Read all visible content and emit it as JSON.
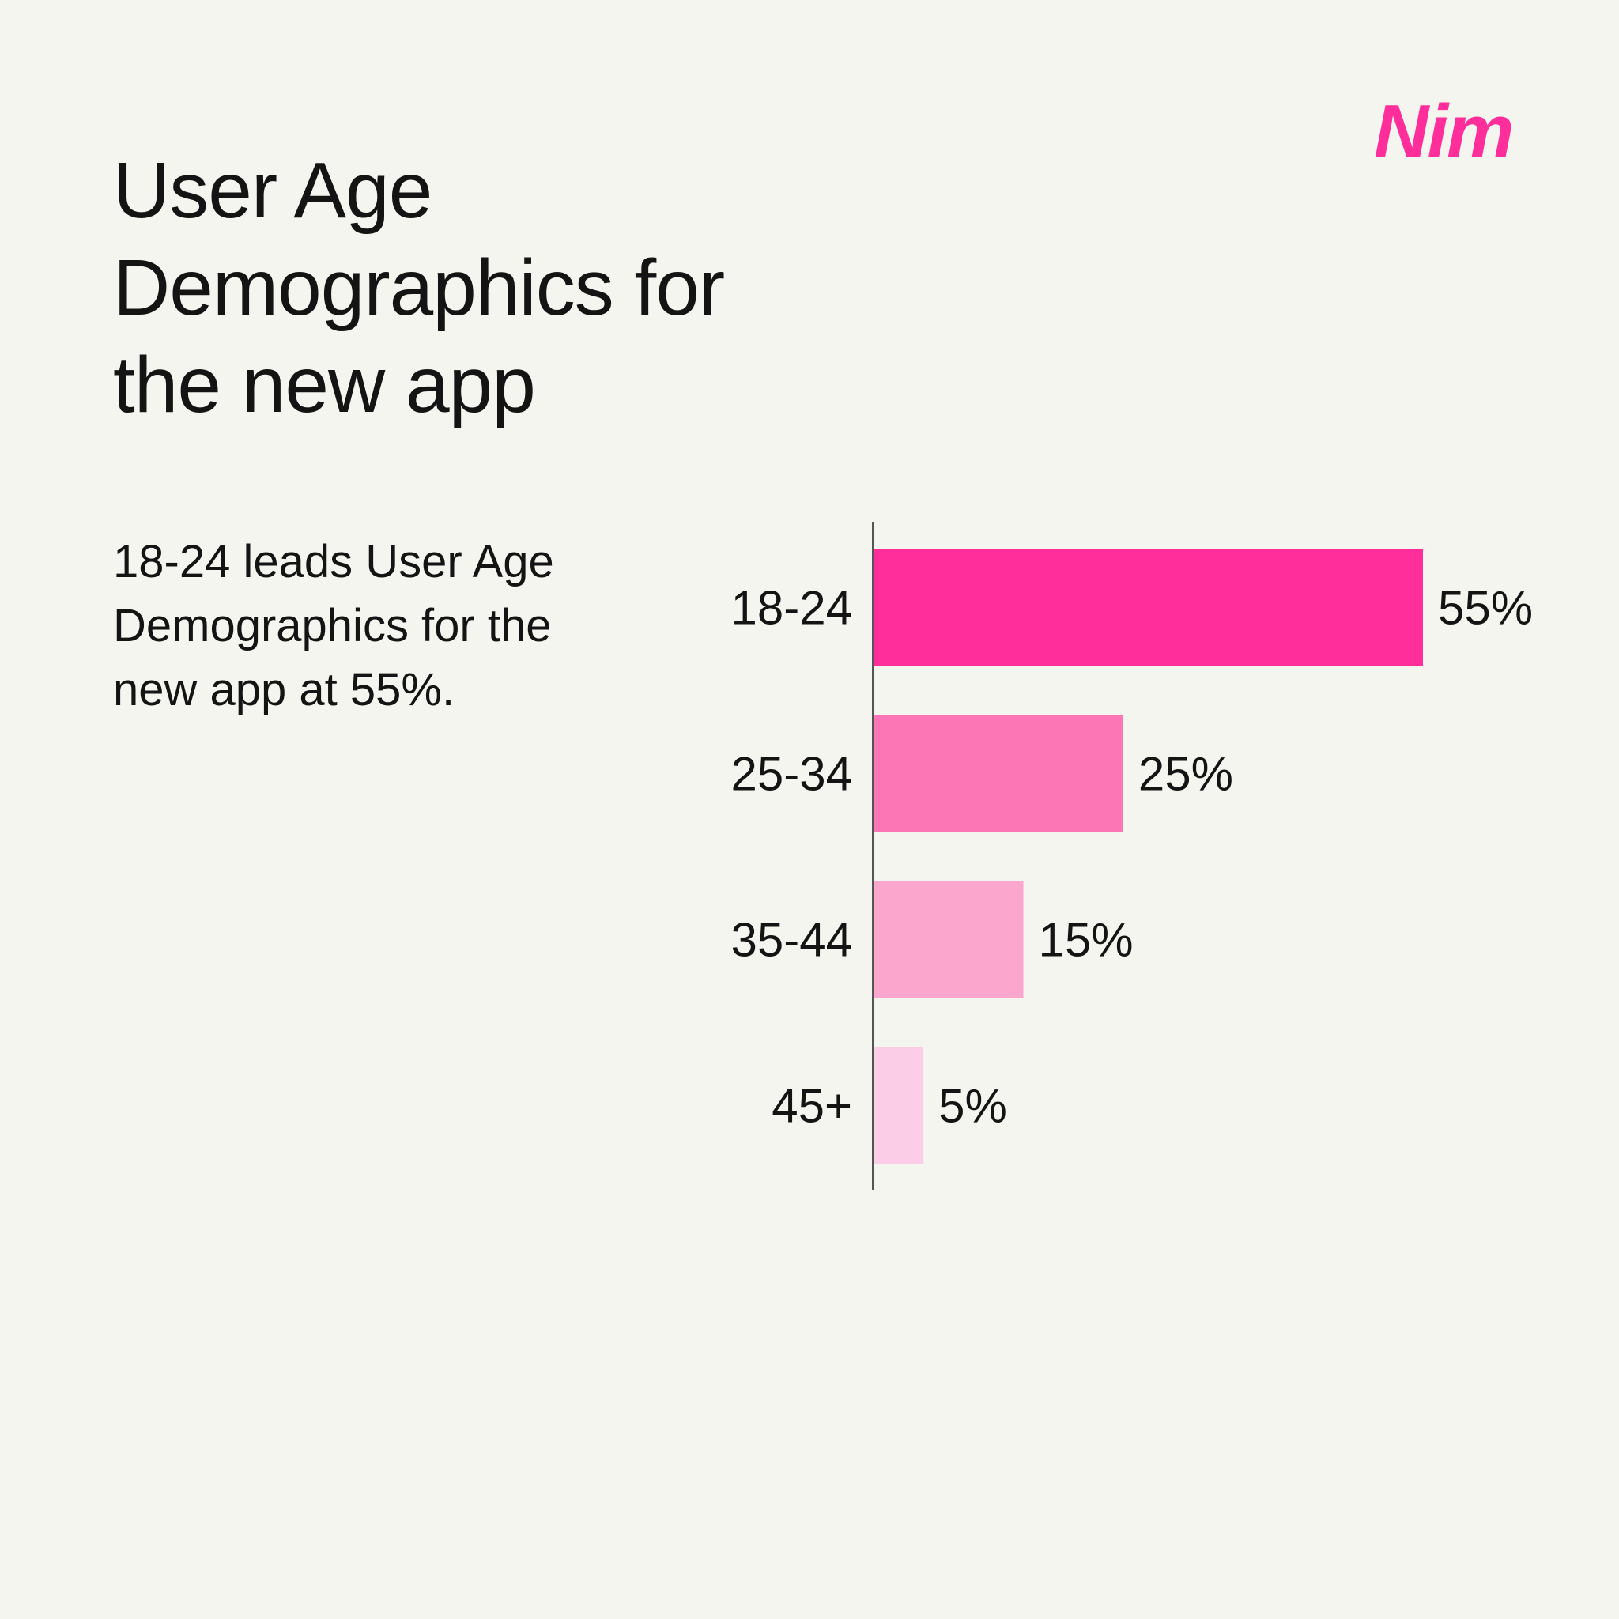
{
  "title": "User Age Demographics for the new app",
  "subtitle": "18-24 leads User Age Demographics for the new app at 55%.",
  "logo": "Nim",
  "colors": {
    "background": "#f5f5f0",
    "brand": "#ff2e9a"
  },
  "chart_data": {
    "type": "bar",
    "orientation": "horizontal",
    "categories": [
      "18-24",
      "25-34",
      "35-44",
      "45+"
    ],
    "values": [
      55,
      25,
      15,
      5
    ],
    "data_labels": [
      "55%",
      "25%",
      "15%",
      "5%"
    ],
    "colors": [
      "#ff2e9a",
      "#fc76b6",
      "#fba6cd",
      "#fccde6"
    ],
    "xlim": [
      0,
      55
    ],
    "grid": false,
    "legend": "none"
  }
}
